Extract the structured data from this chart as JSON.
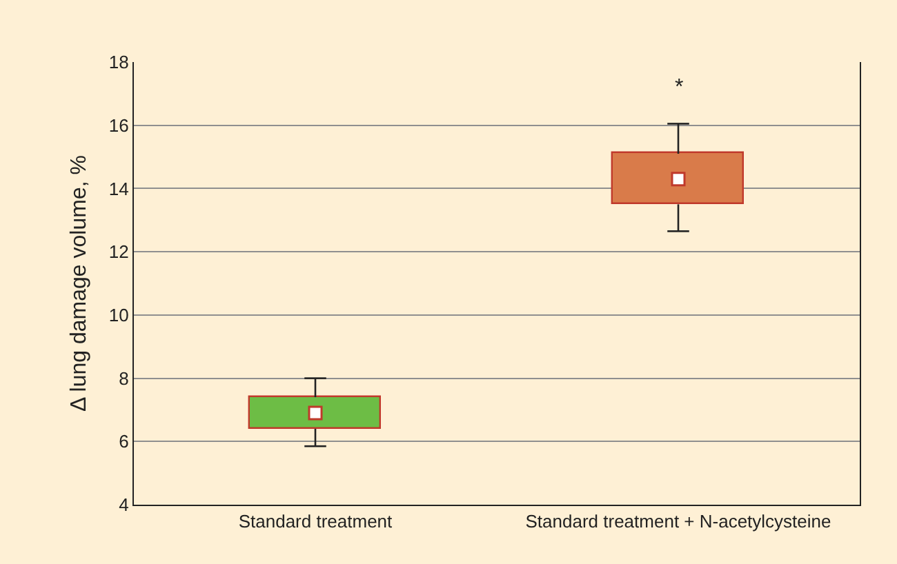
{
  "chart_data": {
    "type": "box",
    "ylabel": "Δ lung damage volume, %",
    "categories": [
      "Standard treatment",
      "Standard treatment + N-acetylcysteine"
    ],
    "boxes": [
      {
        "low": 5.85,
        "q1": 6.4,
        "median": 6.9,
        "q3": 7.4,
        "high": 8.0
      },
      {
        "low": 12.65,
        "q1": 13.5,
        "median": 14.3,
        "q3": 15.1,
        "high": 16.05
      }
    ],
    "colors": [
      "#6dbd45",
      "#d97b4a"
    ],
    "ylim": [
      4,
      18
    ],
    "yticks": [
      4,
      6,
      8,
      10,
      12,
      14,
      16,
      18
    ],
    "grid": "y",
    "annotations": [
      "*"
    ]
  }
}
